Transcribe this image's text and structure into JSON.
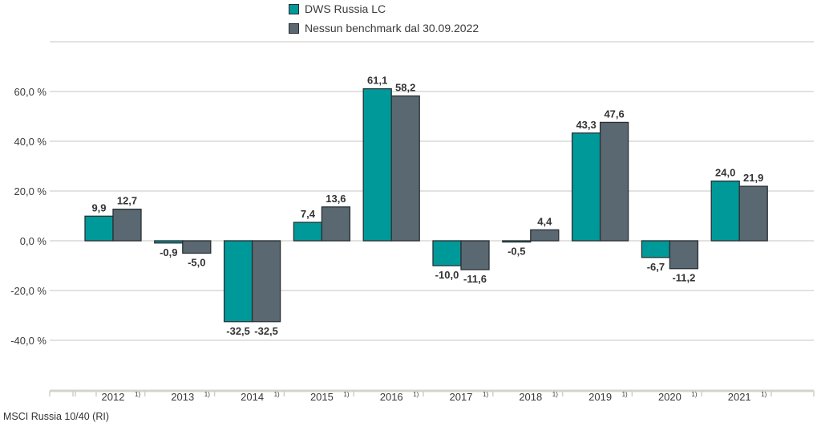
{
  "chart_data": {
    "type": "bar",
    "title": "",
    "xlabel": "",
    "ylabel": "",
    "categories": [
      "2012",
      "2013",
      "2014",
      "2015",
      "2016",
      "2017",
      "2018",
      "2019",
      "2020",
      "2021"
    ],
    "category_footnote_marker": "1)",
    "series": [
      {
        "name": "DWS Russia  LC",
        "color": "#00999a",
        "values": [
          9.9,
          -0.9,
          -32.5,
          7.4,
          61.1,
          -10.0,
          -0.5,
          43.3,
          -6.7,
          24.0
        ],
        "labels": [
          "9,9",
          "-0,9",
          "-32,5",
          "7,4",
          "61,1",
          "-10,0",
          "-0,5",
          "43,3",
          "-6,7",
          "24,0"
        ]
      },
      {
        "name": "Nessun benchmark dal 30.09.2022",
        "color": "#5a6872",
        "values": [
          12.7,
          -5.0,
          -32.5,
          13.6,
          58.2,
          -11.6,
          4.4,
          47.6,
          -11.2,
          21.9
        ],
        "labels": [
          "12,7",
          "-5,0",
          "-32,5",
          "13,6",
          "58,2",
          "-11,6",
          "4,4",
          "47,6",
          "-11,2",
          "21,9"
        ]
      }
    ],
    "yticks": [
      60,
      40,
      20,
      0,
      -20,
      -40
    ],
    "ytick_labels": [
      "60,0 %",
      "40,0 %",
      "20,0 %",
      "0,0 %",
      "-20,0 %",
      "-40,0 %"
    ],
    "ylim": [
      -60,
      80
    ],
    "grid": true,
    "legend_position": "top-center",
    "footnote": "MSCI Russia 10/40 (RI)"
  }
}
